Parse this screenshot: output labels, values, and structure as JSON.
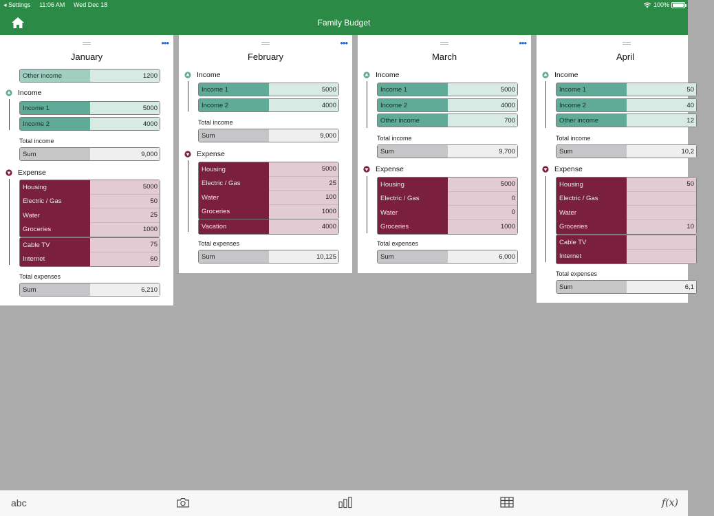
{
  "status": {
    "back_app": "◂ Settings",
    "time": "11:06 AM",
    "date": "Wed Dec 18",
    "battery": "100%"
  },
  "header": {
    "title": "Family Budget"
  },
  "colors": {
    "header_green": "#2b8a46",
    "income_green": "#5fab97",
    "expense_maroon": "#7a1f3e",
    "menu_blue": "#1a6ad9"
  },
  "sheets": [
    {
      "month": "January",
      "other_income": {
        "label": "Other income",
        "value": "1200"
      },
      "income_label": "Income",
      "income": [
        {
          "label": "Income 1",
          "value": "5000"
        },
        {
          "label": "Income 2",
          "value": "4000"
        }
      ],
      "total_income_label": "Total income",
      "income_sum": {
        "label": "Sum",
        "value": "9,000"
      },
      "expense_label": "Expense",
      "expense_block1": [
        {
          "label": "Housing",
          "value": "5000"
        },
        {
          "label": "Electric / Gas",
          "value": "50"
        },
        {
          "label": "Water",
          "value": "25"
        },
        {
          "label": "Groceries",
          "value": "1000"
        }
      ],
      "expense_block2": [
        {
          "label": "Cable TV",
          "value": "75"
        },
        {
          "label": "Internet",
          "value": "60"
        }
      ],
      "total_expenses_label": "Total expenses",
      "expense_sum": {
        "label": "Sum",
        "value": "6,210"
      }
    },
    {
      "month": "February",
      "income_label": "Income",
      "income": [
        {
          "label": "Income 1",
          "value": "5000"
        },
        {
          "label": "Income 2",
          "value": "4000"
        }
      ],
      "total_income_label": "Total income",
      "income_sum": {
        "label": "Sum",
        "value": "9,000"
      },
      "expense_label": "Expense",
      "expense_block1": [
        {
          "label": "Housing",
          "value": "5000"
        },
        {
          "label": "Electric / Gas",
          "value": "25"
        },
        {
          "label": "Water",
          "value": "100"
        },
        {
          "label": "Groceries",
          "value": "1000"
        }
      ],
      "expense_block2": [
        {
          "label": "Vacation",
          "value": "4000"
        }
      ],
      "total_expenses_label": "Total expenses",
      "expense_sum": {
        "label": "Sum",
        "value": "10,125"
      }
    },
    {
      "month": "March",
      "income_label": "Income",
      "income": [
        {
          "label": "Income 1",
          "value": "5000"
        },
        {
          "label": "Income 2",
          "value": "4000"
        },
        {
          "label": "Other income",
          "value": "700"
        }
      ],
      "total_income_label": "Total income",
      "income_sum": {
        "label": "Sum",
        "value": "9,700"
      },
      "expense_label": "Expense",
      "expense_block1": [
        {
          "label": "Housing",
          "value": "5000"
        },
        {
          "label": "Electric / Gas",
          "value": "0"
        },
        {
          "label": "Water",
          "value": "0"
        },
        {
          "label": "Groceries",
          "value": "1000"
        }
      ],
      "total_expenses_label": "Total expenses",
      "expense_sum": {
        "label": "Sum",
        "value": "6,000"
      }
    },
    {
      "month": "April",
      "income_label": "Income",
      "income": [
        {
          "label": "Income 1",
          "value": "50"
        },
        {
          "label": "Income 2",
          "value": "40"
        },
        {
          "label": "Other income",
          "value": "12"
        }
      ],
      "total_income_label": "Total income",
      "income_sum": {
        "label": "Sum",
        "value": "10,2"
      },
      "expense_label": "Expense",
      "expense_block1": [
        {
          "label": "Housing",
          "value": "50"
        },
        {
          "label": "Electric / Gas",
          "value": ""
        },
        {
          "label": "Water",
          "value": ""
        },
        {
          "label": "Groceries",
          "value": "10"
        }
      ],
      "expense_block2": [
        {
          "label": "Cable TV",
          "value": ""
        },
        {
          "label": "Internet",
          "value": ""
        }
      ],
      "total_expenses_label": "Total expenses",
      "expense_sum": {
        "label": "Sum",
        "value": "6,1"
      }
    }
  ],
  "toolbar": {
    "text_label": "abc",
    "formula_label": "f(x)",
    "icons": [
      "camera-icon",
      "bar-chart-icon",
      "table-grid-icon"
    ]
  }
}
